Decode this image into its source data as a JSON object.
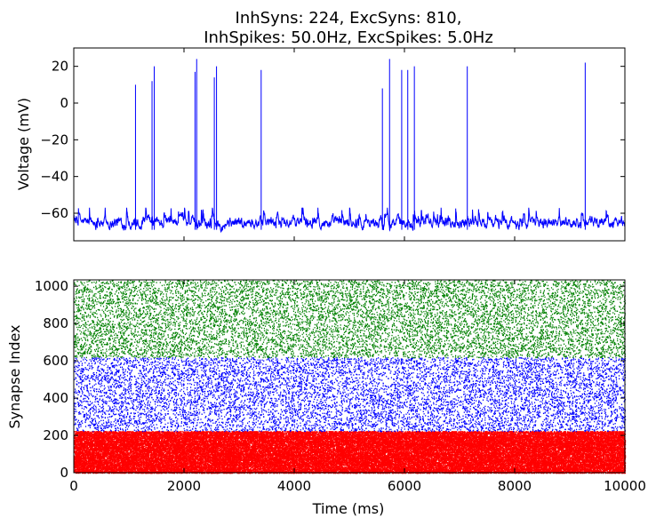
{
  "chart_data": [
    {
      "type": "line",
      "title_line1": "InhSyns: 224, ExcSyns: 810,",
      "title_line2": "InhSpikes: 50.0Hz, ExcSpikes: 5.0Hz",
      "xlabel": "",
      "ylabel": "Voltage (mV)",
      "xlim": [
        0,
        10000
      ],
      "ylim": [
        -75,
        30
      ],
      "yticks": [
        20,
        0,
        -20,
        -40,
        -60
      ],
      "xticks": [
        0,
        2000,
        4000,
        6000,
        8000,
        10000
      ],
      "series_color": "#0000ff",
      "baseline_mv": -65,
      "noise_range_mv": [
        -70,
        -57
      ],
      "spike_times_ms": [
        1120,
        1420,
        1460,
        2200,
        2230,
        2550,
        2590,
        3400,
        5600,
        5730,
        5950,
        6060,
        6180,
        7140,
        9280
      ],
      "spike_peaks_mv": [
        10,
        12,
        20,
        17,
        24,
        14,
        20,
        18,
        8,
        24,
        18,
        18,
        20,
        20,
        22
      ]
    },
    {
      "type": "scatter",
      "xlabel": "Time (ms)",
      "ylabel": "Synapse Index",
      "xlim": [
        0,
        10000
      ],
      "ylim": [
        0,
        1034
      ],
      "xticks": [
        0,
        2000,
        4000,
        6000,
        8000,
        10000
      ],
      "yticks": [
        0,
        200,
        400,
        600,
        800,
        1000
      ],
      "groups": [
        {
          "color": "#ff0000",
          "index_range": [
            0,
            224
          ],
          "rate_hz": 50.0
        },
        {
          "color": "#0000ff",
          "index_range": [
            224,
            620
          ],
          "rate_hz": 5.0
        },
        {
          "color": "#008000",
          "index_range": [
            620,
            1034
          ],
          "rate_hz": 5.0
        }
      ]
    }
  ]
}
